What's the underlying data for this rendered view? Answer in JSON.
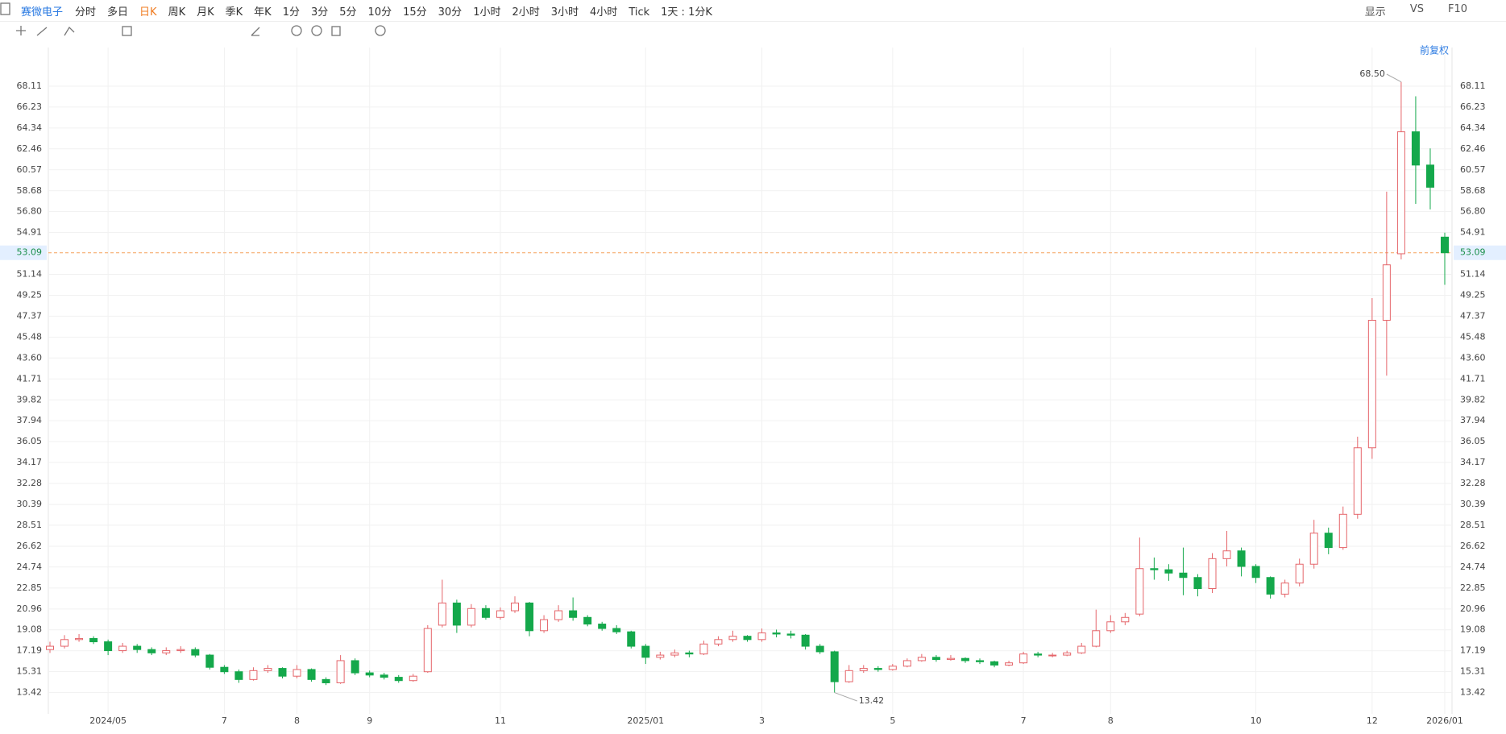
{
  "toolbar": {
    "stock": "赛微电子",
    "periods": [
      "分时",
      "多日",
      "日K",
      "周K",
      "月K",
      "季K",
      "年K",
      "1分",
      "3分",
      "5分",
      "10分",
      "15分",
      "30分",
      "1小时",
      "2小时",
      "3小时",
      "4小时",
      "Tick",
      "1天 : 1分K"
    ],
    "selected_period_index": 2,
    "right_items": [
      "显示",
      "VS",
      "F10"
    ]
  },
  "chart_data": {
    "type": "candlestick",
    "adjust_label": "前复权",
    "categories": [
      null,
      null,
      null,
      null,
      "2024/05",
      null,
      null,
      null,
      null,
      null,
      null,
      null,
      "7",
      null,
      null,
      null,
      null,
      "8",
      null,
      null,
      null,
      null,
      "9",
      null,
      null,
      null,
      null,
      null,
      null,
      null,
      null,
      "11",
      null,
      null,
      null,
      null,
      null,
      null,
      null,
      null,
      null,
      "2025/01",
      null,
      null,
      null,
      null,
      null,
      null,
      null,
      "3",
      null,
      null,
      null,
      null,
      null,
      null,
      null,
      null,
      "5",
      null,
      null,
      null,
      null,
      null,
      null,
      null,
      null,
      "7",
      null,
      null,
      null,
      null,
      null,
      "8",
      null,
      null,
      null,
      null,
      null,
      null,
      null,
      null,
      null,
      "10",
      null,
      null,
      null,
      null,
      null,
      null,
      null,
      "12",
      null,
      null,
      null,
      null,
      "2026/01"
    ],
    "open": [
      17.3,
      17.6,
      18.2,
      18.3,
      18.0,
      17.2,
      17.6,
      17.3,
      17.0,
      17.2,
      17.3,
      16.8,
      15.7,
      15.3,
      14.6,
      15.4,
      15.6,
      14.9,
      15.5,
      14.6,
      14.3,
      16.3,
      15.2,
      15.0,
      14.8,
      14.5,
      15.3,
      19.5,
      21.5,
      19.5,
      21.0,
      20.2,
      20.8,
      21.5,
      19.0,
      20.0,
      20.8,
      20.2,
      19.6,
      19.2,
      18.9,
      17.6,
      16.6,
      16.8,
      17.0,
      16.9,
      17.8,
      18.2,
      18.5,
      18.2,
      18.8,
      18.7,
      18.6,
      17.6,
      17.1,
      14.4,
      15.4,
      15.6,
      15.5,
      15.8,
      16.3,
      16.6,
      16.4,
      16.5,
      16.3,
      16.2,
      15.9,
      16.1,
      16.9,
      16.8,
      16.8,
      17.0,
      17.6,
      19.0,
      19.8,
      20.5,
      24.6,
      24.5,
      24.2,
      23.8,
      22.8,
      25.5,
      26.2,
      24.8,
      23.8,
      22.3,
      23.3,
      25.0,
      27.8,
      26.5,
      29.5,
      35.5,
      47.0,
      53.0,
      64.0,
      61.0,
      54.5
    ],
    "high": [
      18.0,
      18.6,
      18.7,
      18.5,
      18.2,
      17.9,
      17.8,
      17.5,
      17.5,
      17.6,
      17.5,
      16.9,
      15.9,
      15.5,
      15.7,
      15.9,
      15.7,
      15.9,
      15.6,
      14.8,
      16.8,
      16.5,
      15.4,
      15.2,
      15.0,
      15.1,
      19.5,
      23.6,
      21.8,
      21.4,
      21.3,
      21.1,
      22.1,
      21.6,
      20.4,
      21.3,
      22.0,
      20.4,
      19.8,
      19.5,
      19.0,
      17.8,
      17.1,
      17.3,
      17.2,
      18.1,
      18.5,
      19.0,
      18.6,
      19.2,
      19.1,
      19.0,
      18.7,
      17.8,
      17.2,
      15.9,
      15.9,
      15.8,
      16.0,
      16.5,
      16.9,
      16.8,
      16.8,
      16.6,
      16.5,
      16.3,
      16.3,
      17.1,
      17.1,
      17.0,
      17.2,
      17.9,
      20.9,
      20.4,
      20.6,
      27.4,
      25.6,
      25.0,
      26.5,
      24.1,
      26.0,
      28.0,
      26.5,
      25.0,
      23.9,
      23.6,
      25.5,
      29.0,
      28.3,
      30.2,
      36.5,
      49.0,
      58.6,
      68.5,
      67.2,
      62.5,
      54.9
    ],
    "low": [
      17.0,
      17.4,
      18.0,
      17.8,
      16.8,
      17.0,
      17.0,
      16.8,
      16.8,
      17.0,
      16.6,
      15.5,
      15.1,
      14.3,
      14.5,
      15.2,
      14.7,
      14.7,
      14.4,
      14.1,
      14.2,
      15.0,
      14.8,
      14.6,
      14.3,
      14.4,
      15.2,
      19.3,
      18.8,
      19.3,
      20.0,
      20.0,
      20.6,
      18.5,
      18.8,
      19.8,
      19.9,
      19.4,
      19.0,
      18.7,
      17.4,
      16.0,
      16.4,
      16.6,
      16.6,
      16.8,
      17.6,
      18.0,
      18.0,
      18.0,
      18.4,
      18.3,
      17.3,
      16.9,
      13.42,
      14.3,
      15.2,
      15.3,
      15.4,
      15.7,
      16.2,
      16.2,
      16.3,
      16.1,
      16.0,
      15.7,
      15.8,
      16.0,
      16.6,
      16.6,
      16.7,
      16.9,
      17.5,
      18.8,
      19.5,
      20.3,
      23.6,
      23.5,
      22.2,
      22.1,
      22.4,
      24.8,
      23.9,
      23.3,
      21.9,
      22.0,
      23.0,
      24.6,
      25.9,
      26.3,
      29.1,
      34.5,
      42.0,
      52.5,
      57.5,
      57.0,
      50.2
    ],
    "close": [
      17.6,
      18.2,
      18.3,
      18.0,
      17.2,
      17.6,
      17.3,
      17.0,
      17.2,
      17.3,
      16.8,
      15.7,
      15.3,
      14.6,
      15.4,
      15.6,
      14.9,
      15.5,
      14.6,
      14.3,
      16.3,
      15.2,
      15.0,
      14.8,
      14.5,
      14.9,
      19.2,
      21.5,
      19.5,
      21.0,
      20.2,
      20.8,
      21.5,
      19.0,
      20.0,
      20.8,
      20.2,
      19.6,
      19.2,
      18.9,
      17.6,
      16.6,
      16.8,
      17.0,
      16.9,
      17.8,
      18.2,
      18.5,
      18.2,
      18.8,
      18.7,
      18.6,
      17.6,
      17.1,
      14.4,
      15.4,
      15.6,
      15.5,
      15.8,
      16.3,
      16.6,
      16.4,
      16.5,
      16.3,
      16.2,
      15.9,
      16.1,
      16.9,
      16.8,
      16.8,
      17.0,
      17.6,
      19.0,
      19.8,
      20.2,
      24.6,
      24.5,
      24.2,
      23.8,
      22.8,
      25.5,
      26.2,
      24.8,
      23.8,
      22.3,
      23.3,
      25.0,
      27.8,
      26.5,
      29.5,
      35.5,
      47.0,
      52.0,
      64.0,
      61.0,
      59.0,
      53.09
    ],
    "up_color": "#e5656a",
    "down_color": "#14a84b",
    "ylim": [
      11.5,
      71.6
    ],
    "yticks": [
      13.42,
      15.31,
      17.19,
      19.08,
      20.96,
      22.85,
      24.74,
      26.62,
      28.51,
      30.39,
      32.28,
      34.17,
      36.05,
      37.94,
      39.82,
      41.71,
      {
        "value": 43.6,
        "label": "43.60"
      },
      45.48,
      47.37,
      49.25,
      51.14,
      54.91,
      {
        "value": 56.8,
        "label": "56.80"
      },
      58.68,
      60.57,
      62.46,
      64.34,
      66.23,
      68.11
    ],
    "grid": true,
    "current_price": 53.09,
    "current_price_color": "#f5a25d",
    "max_label": {
      "value": 68.5,
      "label": "68.50"
    },
    "min_label": 13.42
  }
}
